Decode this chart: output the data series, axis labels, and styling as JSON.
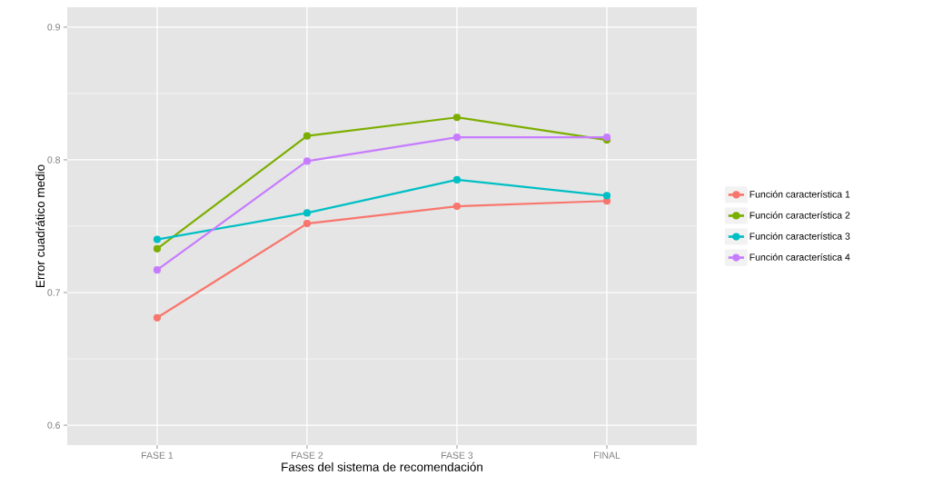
{
  "chart_data": {
    "type": "line",
    "xlabel": "Fases del sistema de recomendación",
    "ylabel": "Error cuadrático medio",
    "categories": [
      "FASE 1",
      "FASE 2",
      "FASE 3",
      "FINAL"
    ],
    "series": [
      {
        "name": "Función característica 1",
        "color": "#f8766d",
        "values": [
          0.681,
          0.752,
          0.765,
          0.769
        ]
      },
      {
        "name": "Función característica 2",
        "color": "#7cae00",
        "values": [
          0.733,
          0.818,
          0.832,
          0.815
        ]
      },
      {
        "name": "Función característica 3",
        "color": "#00bfc4",
        "values": [
          0.74,
          0.76,
          0.785,
          0.773
        ]
      },
      {
        "name": "Función característica 4",
        "color": "#c77cff",
        "values": [
          0.717,
          0.799,
          0.817,
          0.817
        ]
      }
    ],
    "ylim": [
      0.585,
      0.915
    ],
    "yticks": [
      0.6,
      0.7,
      0.8,
      0.9
    ],
    "grid": true,
    "legend": "right",
    "marker": "circle",
    "line_style": "solid"
  }
}
